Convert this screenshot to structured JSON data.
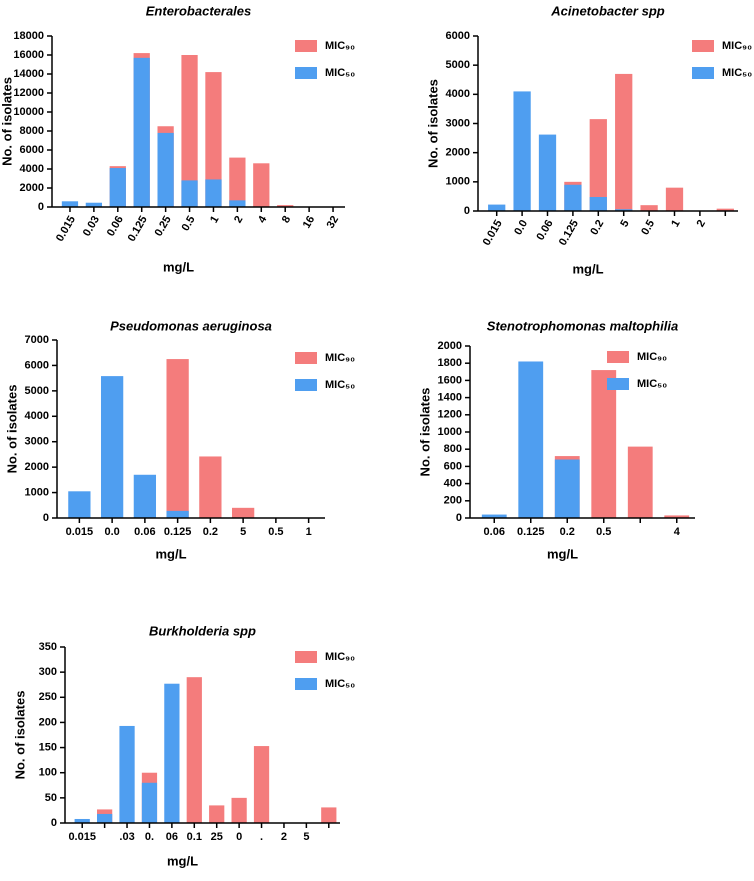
{
  "chart_data": [
    {
      "type": "bar",
      "title": "Enterobacterales",
      "xlabel": "mg/L",
      "ylabel": "No. of isolates",
      "categories": [
        "0.015",
        "0.03",
        "0.06",
        "0.125",
        "0.25",
        "0.5",
        "1",
        "2",
        "4",
        "8",
        "16",
        "32"
      ],
      "series": [
        {
          "name": "MIC₉₀",
          "color": "#f47c7c",
          "values": [
            0,
            0,
            4300,
            16200,
            8500,
            16000,
            14200,
            5200,
            4600,
            200,
            0,
            0
          ]
        },
        {
          "name": "MIC₅₀",
          "color": "#4f9ef0",
          "values": [
            600,
            450,
            4100,
            15700,
            7800,
            2800,
            2900,
            700,
            0,
            0,
            0,
            0
          ]
        }
      ],
      "ylim": [
        0,
        18000
      ],
      "yticks": [
        0,
        2000,
        4000,
        6000,
        8000,
        10000,
        12000,
        14000,
        16000,
        18000
      ]
    },
    {
      "type": "bar",
      "title": "Acinetobacter spp",
      "xlabel": "mg/L",
      "ylabel": "No. of isolates",
      "categories": [
        "0.015",
        "0.0",
        "0.06",
        "0.125",
        "0.2",
        "5",
        "0.5",
        "1",
        "2",
        null
      ],
      "series": [
        {
          "name": "MIC₉₀",
          "color": "#f47c7c",
          "values": [
            0,
            0,
            0,
            1000,
            3150,
            4700,
            200,
            800,
            0,
            80
          ]
        },
        {
          "name": "MIC₅₀",
          "color": "#4f9ef0",
          "values": [
            220,
            4100,
            2620,
            900,
            480,
            60,
            0,
            0,
            0,
            0
          ]
        }
      ],
      "ylim": [
        0,
        6000
      ],
      "yticks": [
        0,
        1000,
        2000,
        3000,
        4000,
        5000,
        6000
      ]
    },
    {
      "type": "bar",
      "title": "Pseudomonas aeruginosa",
      "xlabel": "mg/L",
      "ylabel": "No. of isolates",
      "categories": [
        "0.015",
        "0.0",
        "0.06",
        "0.125",
        "0.2",
        "5",
        "0.5",
        "1"
      ],
      "series": [
        {
          "name": "MIC₉₀",
          "color": "#f47c7c",
          "values": [
            0,
            0,
            0,
            6250,
            2420,
            400,
            0,
            0
          ]
        },
        {
          "name": "MIC₅₀",
          "color": "#4f9ef0",
          "values": [
            1050,
            5580,
            1700,
            280,
            0,
            0,
            0,
            0
          ]
        }
      ],
      "ylim": [
        0,
        7000
      ],
      "yticks": [
        0,
        1000,
        2000,
        3000,
        4000,
        5000,
        6000,
        7000
      ]
    },
    {
      "type": "bar",
      "title": "Stenotrophomonas maltophilia",
      "xlabel": "mg/L",
      "ylabel": "No. of isolates",
      "categories": [
        "0.06",
        "0.125",
        "0.2",
        "0.5",
        null,
        "4"
      ],
      "series": [
        {
          "name": "MIC₉₀",
          "color": "#f47c7c",
          "values": [
            0,
            0,
            720,
            1720,
            830,
            30
          ]
        },
        {
          "name": "MIC₅₀",
          "color": "#4f9ef0",
          "values": [
            40,
            1820,
            680,
            0,
            0,
            0
          ]
        }
      ],
      "ylim": [
        0,
        2000
      ],
      "yticks": [
        0,
        200,
        400,
        600,
        800,
        1000,
        1200,
        1400,
        1600,
        1800,
        2000
      ]
    },
    {
      "type": "bar",
      "title": "Burkholderia spp",
      "xlabel": "mg/L",
      "ylabel": "No. of isolates",
      "categories": [
        "0.015",
        null,
        ".03",
        "0.",
        "06",
        "0.1",
        "25",
        "0",
        ".",
        "2",
        "5",
        null
      ],
      "series": [
        {
          "name": "MIC₉₀",
          "color": "#f47c7c",
          "values": [
            0,
            27,
            0,
            100,
            0,
            290,
            35,
            50,
            153,
            0,
            0,
            31
          ]
        },
        {
          "name": "MIC₅₀",
          "color": "#4f9ef0",
          "values": [
            8,
            18,
            193,
            80,
            277,
            0,
            0,
            0,
            0,
            0,
            0,
            0
          ]
        }
      ],
      "ylim": [
        0,
        350
      ],
      "yticks": [
        0,
        50,
        100,
        150,
        200,
        250,
        300,
        350
      ]
    }
  ]
}
